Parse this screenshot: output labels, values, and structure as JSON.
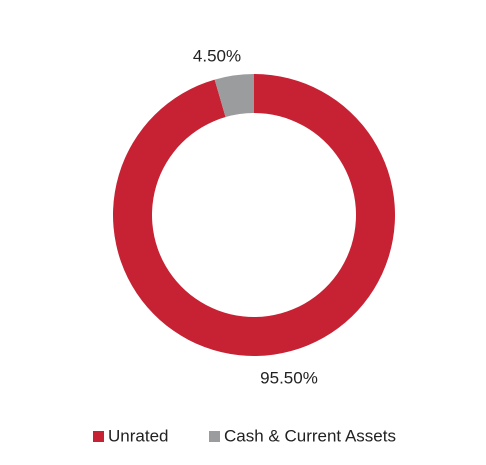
{
  "chart_data": {
    "type": "donut",
    "categories": [
      "Unrated",
      "Cash & Current Assets"
    ],
    "values": [
      95.5,
      4.5
    ],
    "value_labels": [
      "95.50%",
      "4.50%"
    ],
    "colors": [
      "#c62233",
      "#9b9c9e"
    ]
  }
}
